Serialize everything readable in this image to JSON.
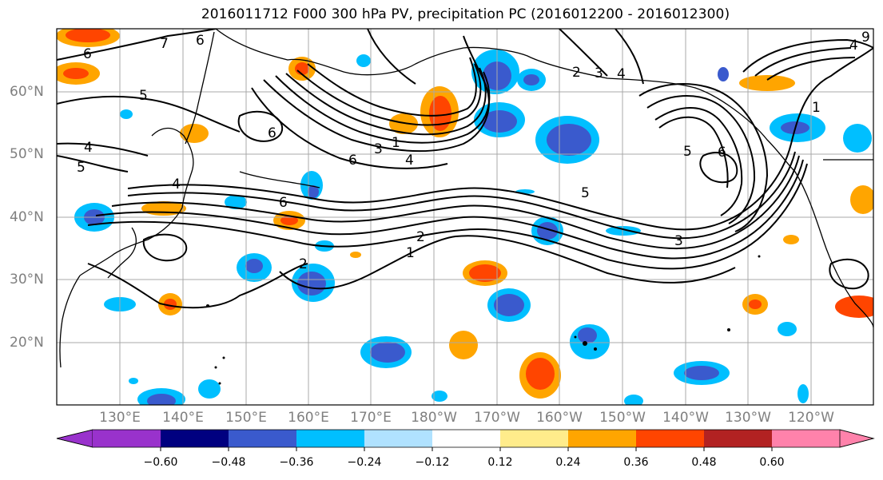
{
  "title": "2016011712 F000 300 hPa PV, precipitation PC (2016012200 - 2016012300)",
  "map": {
    "projection": "equirectangular",
    "lon_labels": [
      "130°E",
      "140°E",
      "150°E",
      "160°E",
      "170°E",
      "180°W",
      "170°W",
      "160°W",
      "150°W",
      "140°W",
      "130°W",
      "120°W"
    ],
    "lat_labels": [
      "20°N",
      "30°N",
      "40°N",
      "50°N",
      "60°N"
    ],
    "gridlines": true
  },
  "pv_contour_labels": [
    "1",
    "2",
    "3",
    "4",
    "5",
    "6"
  ],
  "colorbar": {
    "ticks": [
      "−0.60",
      "−0.48",
      "−0.36",
      "−0.24",
      "−0.12",
      "0.12",
      "0.24",
      "0.36",
      "0.48",
      "0.60"
    ],
    "colors": [
      "#9932cc",
      "#000080",
      "#3a5acd",
      "#00bfff",
      "#b0e2ff",
      "#ffffff",
      "#ffec8b",
      "#ffa500",
      "#ff4500",
      "#b22222",
      "#ff82ab"
    ],
    "extend": "both"
  }
}
